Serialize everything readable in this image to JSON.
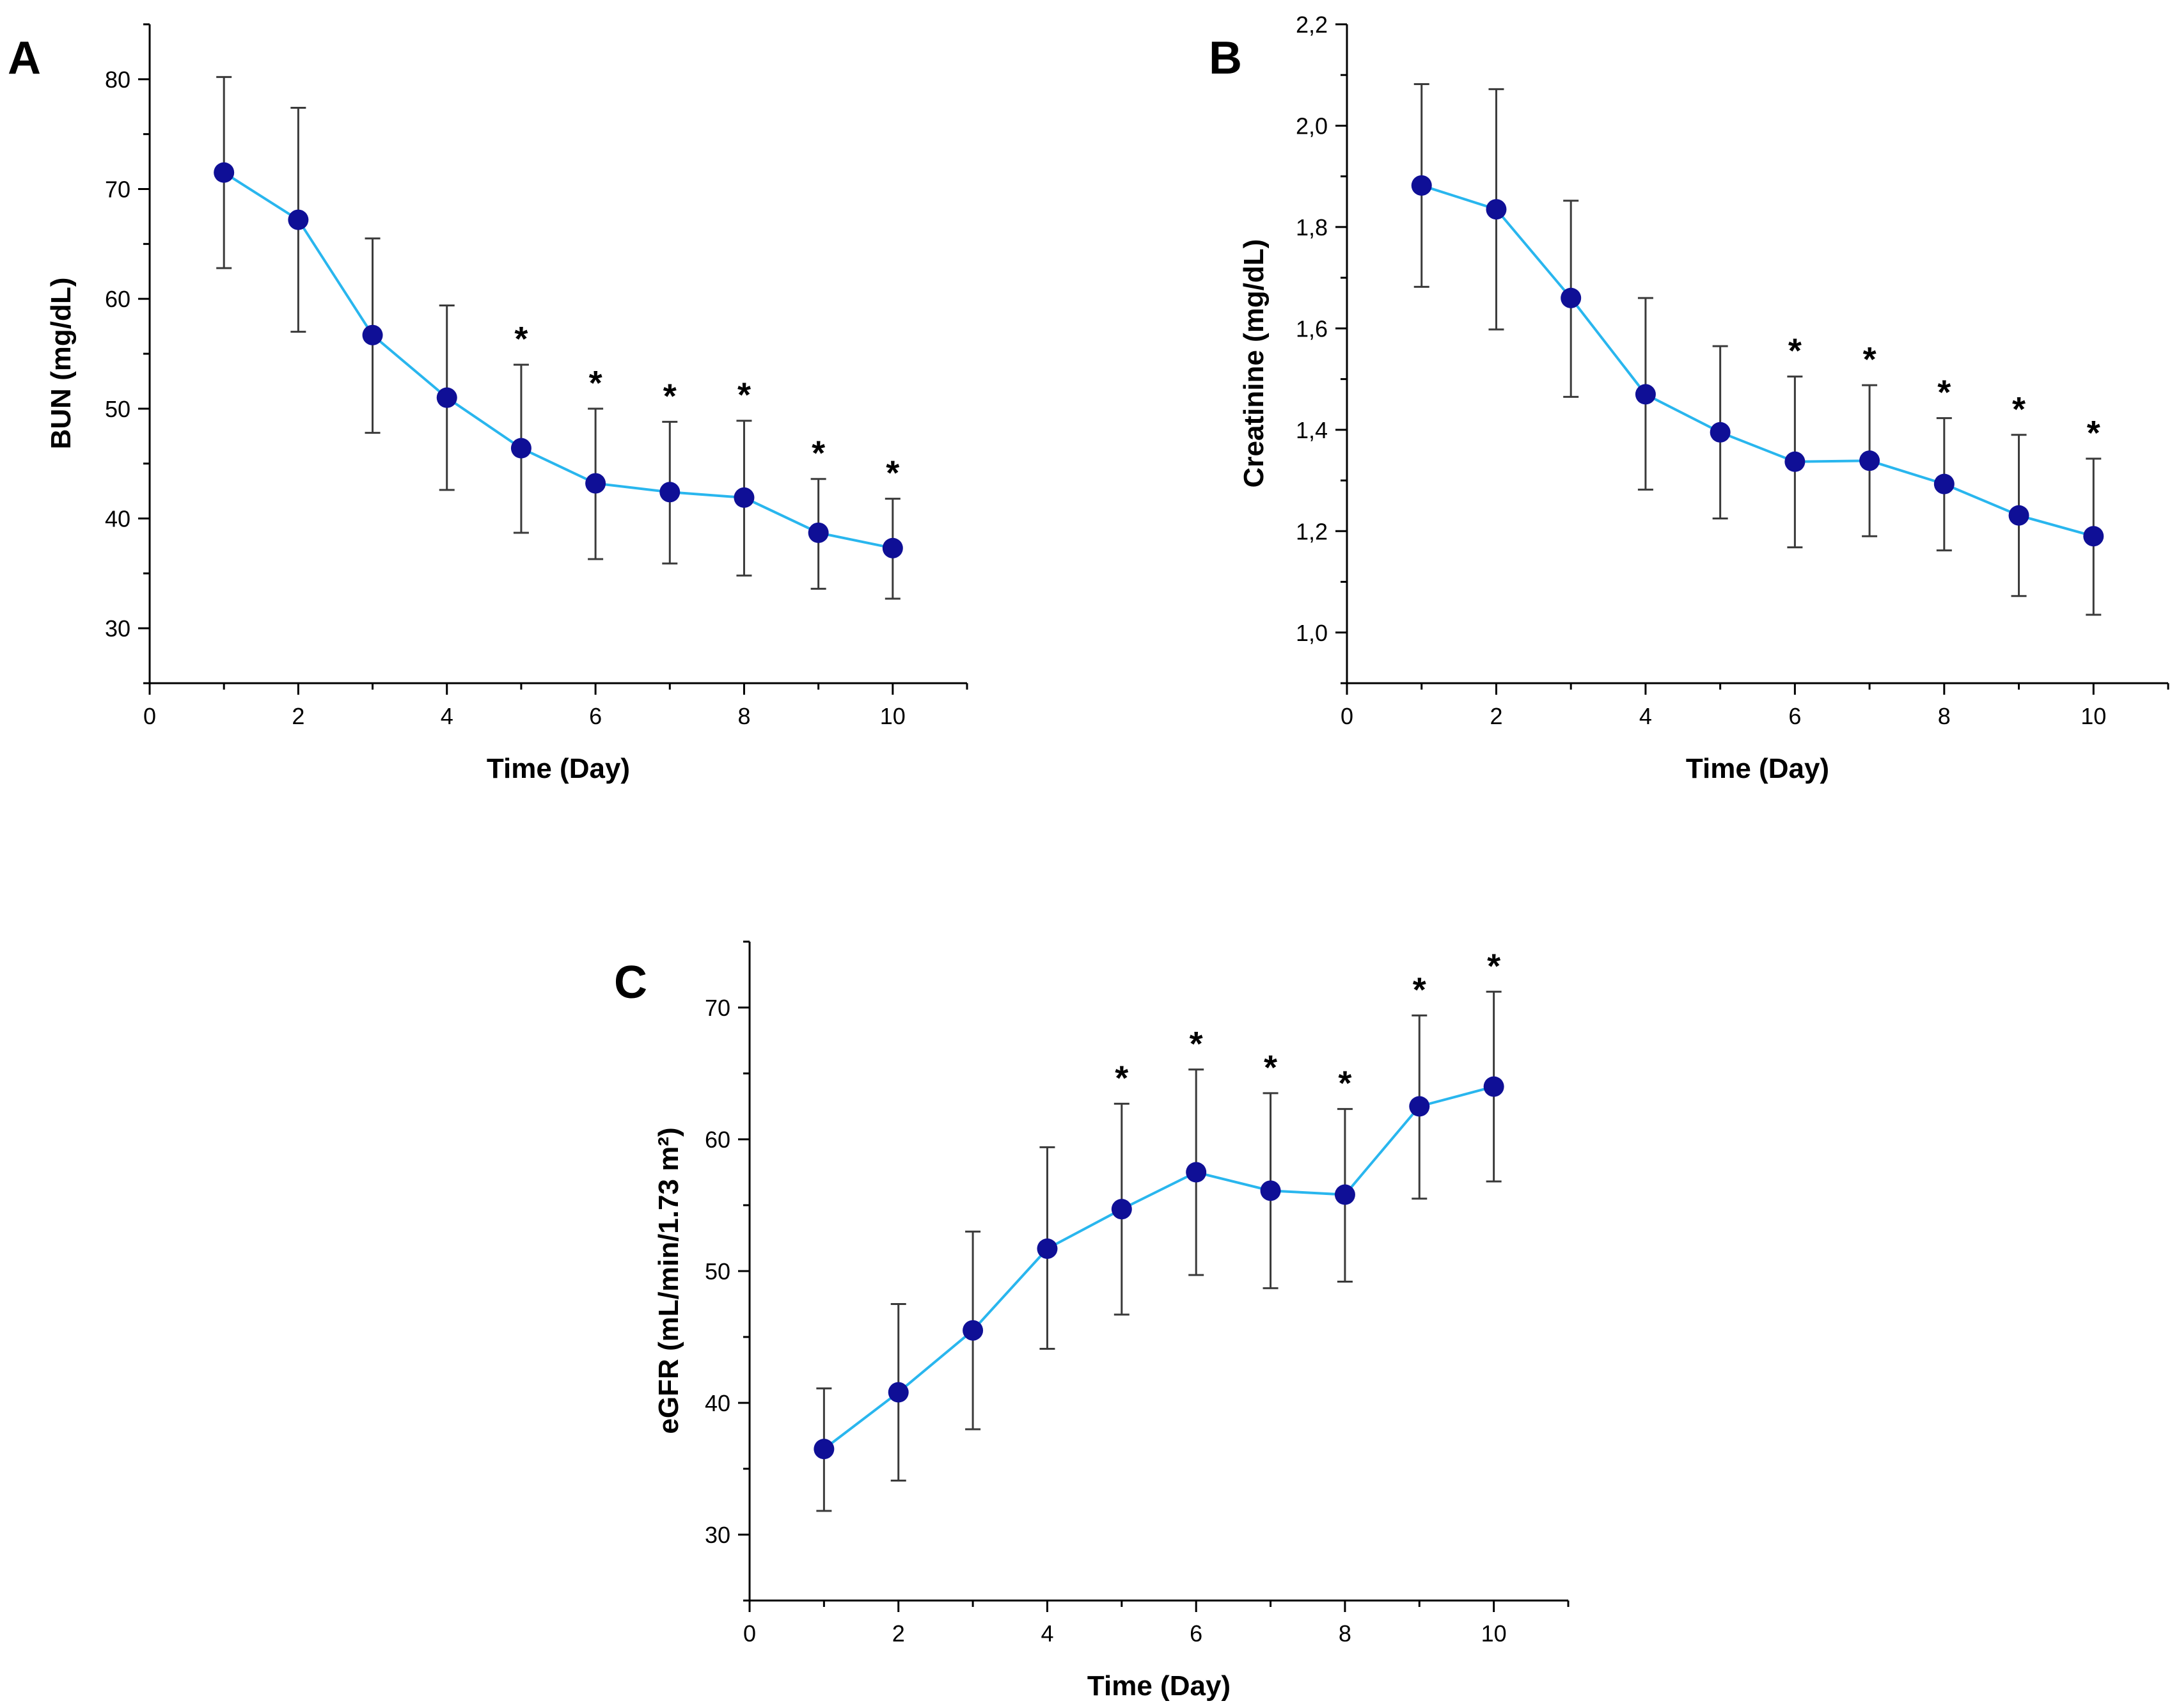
{
  "chart_data": [
    {
      "type": "line",
      "panel": "A",
      "xlabel": "Time (Day)",
      "ylabel": "BUN (mg/dL)",
      "xlim": [
        0,
        11
      ],
      "ylim": [
        25,
        85
      ],
      "xticks": [
        0,
        2,
        4,
        6,
        8,
        10
      ],
      "yticks": [
        30,
        40,
        50,
        60,
        70,
        80
      ],
      "ytick_labels": [
        "30",
        "40",
        "50",
        "60",
        "70",
        "80"
      ],
      "x": [
        1,
        2,
        3,
        4,
        5,
        6,
        7,
        8,
        9,
        10
      ],
      "values": [
        71.5,
        67.2,
        56.7,
        51.0,
        46.4,
        43.2,
        42.4,
        41.9,
        38.7,
        37.3
      ],
      "err_low": [
        62.8,
        57.0,
        47.8,
        42.6,
        38.7,
        36.3,
        35.9,
        34.8,
        33.6,
        32.7
      ],
      "err_high": [
        80.2,
        77.4,
        65.5,
        59.4,
        54.0,
        50.0,
        48.8,
        48.9,
        43.6,
        41.8
      ],
      "significance": [
        false,
        false,
        false,
        false,
        true,
        true,
        true,
        true,
        true,
        true
      ],
      "sig_marker": "*",
      "line_color": "#29b6ee",
      "marker_color": "#0f0f96"
    },
    {
      "type": "line",
      "panel": "B",
      "xlabel": "Time (Day)",
      "ylabel": "Creatinine (mg/dL)",
      "xlim": [
        0,
        11
      ],
      "ylim": [
        0.9,
        2.2
      ],
      "xticks": [
        0,
        2,
        4,
        6,
        8,
        10
      ],
      "yticks": [
        1.0,
        1.2,
        1.4,
        1.6,
        1.8,
        2.0,
        2.2
      ],
      "ytick_labels": [
        "1,0",
        "1,2",
        "1,4",
        "1,6",
        "1,8",
        "2,0",
        "2,2"
      ],
      "x": [
        1,
        2,
        3,
        4,
        5,
        6,
        7,
        8,
        9,
        10
      ],
      "values": [
        1.882,
        1.835,
        1.66,
        1.47,
        1.395,
        1.337,
        1.339,
        1.293,
        1.231,
        1.19
      ],
      "err_low": [
        1.682,
        1.598,
        1.465,
        1.282,
        1.225,
        1.168,
        1.19,
        1.162,
        1.072,
        1.035
      ],
      "err_high": [
        2.082,
        2.072,
        1.852,
        1.66,
        1.565,
        1.505,
        1.488,
        1.423,
        1.39,
        1.343
      ],
      "significance": [
        false,
        false,
        false,
        false,
        false,
        true,
        true,
        true,
        true,
        true
      ],
      "sig_marker": "*",
      "line_color": "#29b6ee",
      "marker_color": "#0f0f96"
    },
    {
      "type": "line",
      "panel": "C",
      "xlabel": "Time (Day)",
      "ylabel": "eGFR (mL/min/1.73 m²)",
      "xlim": [
        0,
        11
      ],
      "ylim": [
        25,
        75
      ],
      "xticks": [
        0,
        2,
        4,
        6,
        8,
        10
      ],
      "yticks": [
        30,
        40,
        50,
        60,
        70
      ],
      "ytick_labels": [
        "30",
        "40",
        "50",
        "60",
        "70"
      ],
      "x": [
        1,
        2,
        3,
        4,
        5,
        6,
        7,
        8,
        9,
        10
      ],
      "values": [
        36.5,
        40.8,
        45.5,
        51.7,
        54.7,
        57.5,
        56.1,
        55.8,
        62.5,
        64.0
      ],
      "err_low": [
        31.8,
        34.1,
        38.0,
        44.1,
        46.7,
        49.7,
        48.7,
        49.2,
        55.5,
        56.8
      ],
      "err_high": [
        41.1,
        47.5,
        53.0,
        59.4,
        62.7,
        65.3,
        63.5,
        62.3,
        69.4,
        71.2
      ],
      "significance": [
        false,
        false,
        false,
        false,
        true,
        true,
        true,
        true,
        true,
        true
      ],
      "sig_marker": "*",
      "line_color": "#29b6ee",
      "marker_color": "#0f0f96"
    }
  ]
}
